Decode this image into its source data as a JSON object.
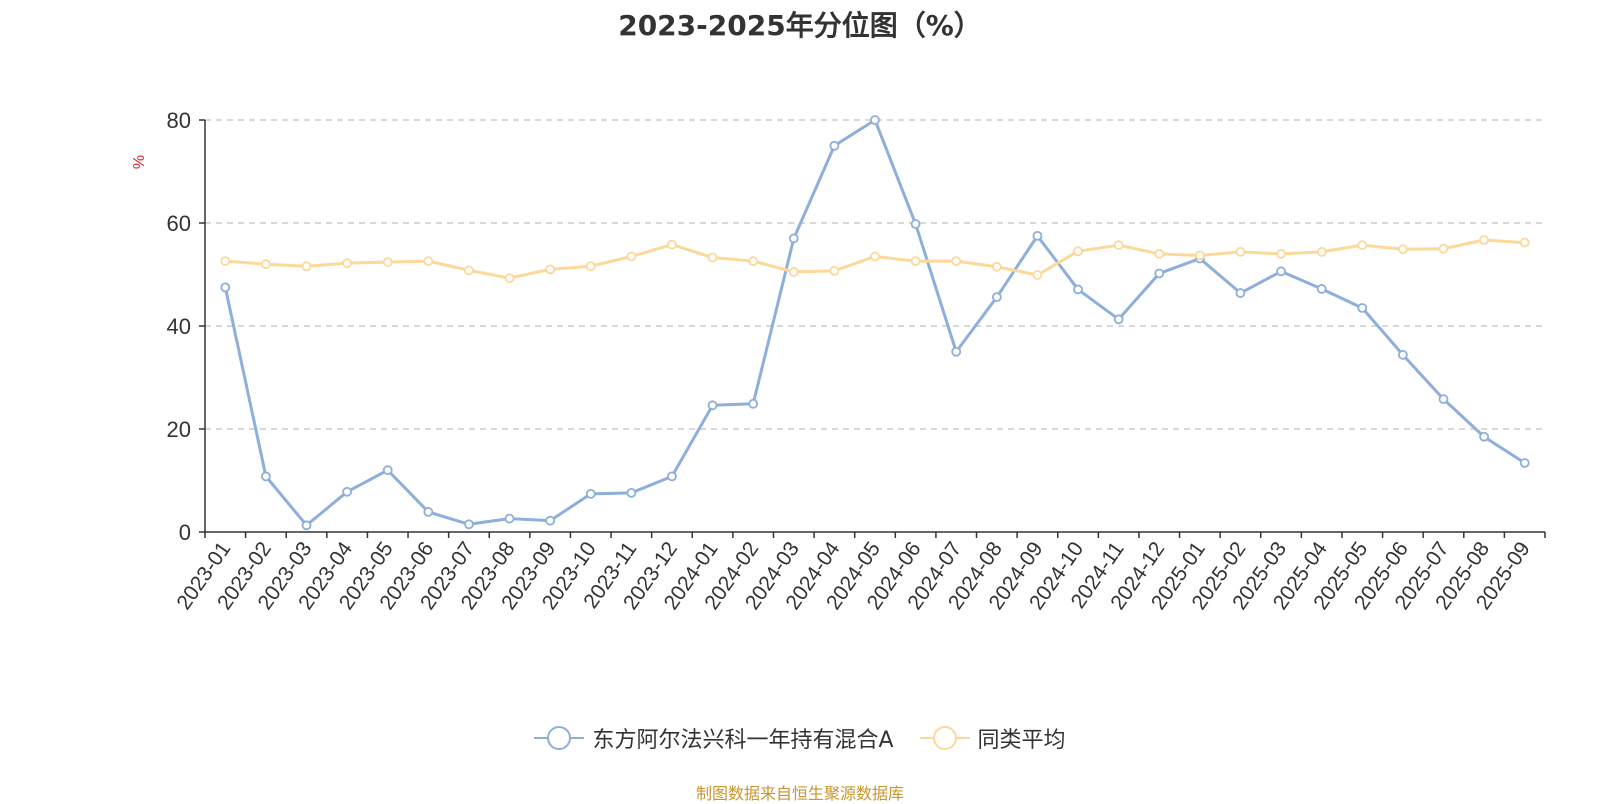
{
  "title": "2023-2025年分位图（%）",
  "source": "制图数据来自恒生聚源数据库",
  "chart_data": {
    "type": "line",
    "title": "2023-2025年分位图（%）",
    "ylabel": "%",
    "xlabel": "",
    "ylim": [
      0,
      80
    ],
    "yticks": [
      0,
      20,
      40,
      60,
      80
    ],
    "grid": true,
    "legend_position": "bottom",
    "categories": [
      "2023-01",
      "2023-02",
      "2023-03",
      "2023-04",
      "2023-05",
      "2023-06",
      "2023-07",
      "2023-08",
      "2023-09",
      "2023-10",
      "2023-11",
      "2023-12",
      "2024-01",
      "2024-02",
      "2024-03",
      "2024-04",
      "2024-05",
      "2024-06",
      "2024-07",
      "2024-08",
      "2024-09",
      "2024-10",
      "2024-11",
      "2024-12",
      "2025-01",
      "2025-02",
      "2025-03",
      "2025-04",
      "2025-05",
      "2025-06",
      "2025-07",
      "2025-08",
      "2025-09"
    ],
    "series": [
      {
        "name": "东方阿尔法兴科一年持有混合A",
        "color": "#8eaedb",
        "values": [
          47.5,
          10.8,
          1.3,
          7.8,
          12.0,
          3.9,
          1.5,
          2.6,
          2.2,
          7.4,
          7.6,
          10.8,
          24.6,
          24.9,
          57.0,
          75.0,
          80.0,
          59.8,
          35.0,
          45.6,
          57.5,
          47.1,
          41.3,
          50.2,
          53.1,
          46.4,
          50.6,
          47.2,
          43.5,
          34.4,
          25.8,
          18.5,
          13.4
        ]
      },
      {
        "name": "同类平均",
        "color": "#fcd899",
        "values": [
          52.6,
          52.0,
          51.6,
          52.2,
          52.4,
          52.6,
          50.8,
          49.3,
          51.0,
          51.6,
          53.5,
          55.8,
          53.3,
          52.6,
          50.5,
          50.7,
          53.5,
          52.6,
          52.6,
          51.5,
          49.9,
          54.5,
          55.7,
          54.0,
          53.7,
          54.4,
          54.0,
          54.4,
          55.7,
          54.9,
          55.0,
          56.7,
          56.2
        ]
      }
    ]
  }
}
